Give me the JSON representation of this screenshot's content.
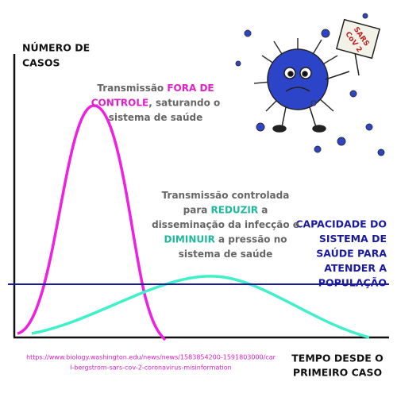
{
  "y_axis_label": [
    "NÚMERO DE",
    "CASOS"
  ],
  "x_axis_label": [
    "TEMPO DESDE O",
    "PRIMEIRO CASO"
  ],
  "uncontrolled_note": [
    [
      {
        "text": "Transmissão ",
        "color": "#666666"
      },
      {
        "text": "FORA DE",
        "color": "#e020c8"
      }
    ],
    [
      {
        "text": "CONTROLE",
        "color": "#e020c8"
      },
      {
        "text": ", saturando o",
        "color": "#666666"
      }
    ],
    [
      {
        "text": "sistema de saúde",
        "color": "#666666"
      }
    ]
  ],
  "controlled_note": [
    [
      {
        "text": "Transmissão controlada",
        "color": "#666666"
      }
    ],
    [
      {
        "text": "para ",
        "color": "#666666"
      },
      {
        "text": "REDUZIR",
        "color": "#1fb89a"
      },
      {
        "text": " a",
        "color": "#666666"
      }
    ],
    [
      {
        "text": "disseminação da infecção e",
        "color": "#666666"
      }
    ],
    [
      {
        "text": "DIMINUIR",
        "color": "#1fb89a"
      },
      {
        "text": " a pressão no",
        "color": "#666666"
      }
    ],
    [
      {
        "text": "sistema de saúde",
        "color": "#666666"
      }
    ]
  ],
  "capacity_label": [
    "CAPACIDADE DO",
    "SISTEMA DE",
    "SAÚDE PARA",
    "ATENDER A",
    "POPULAÇÃO"
  ],
  "source_url": [
    "https://www.biology.washington.edu/news/news/1583854200-1591803000/car",
    "l-bergstrom-sars-cov-2-coronavirus-misinformation"
  ],
  "sign_text": [
    "SARS",
    "CoV 2"
  ]
}
